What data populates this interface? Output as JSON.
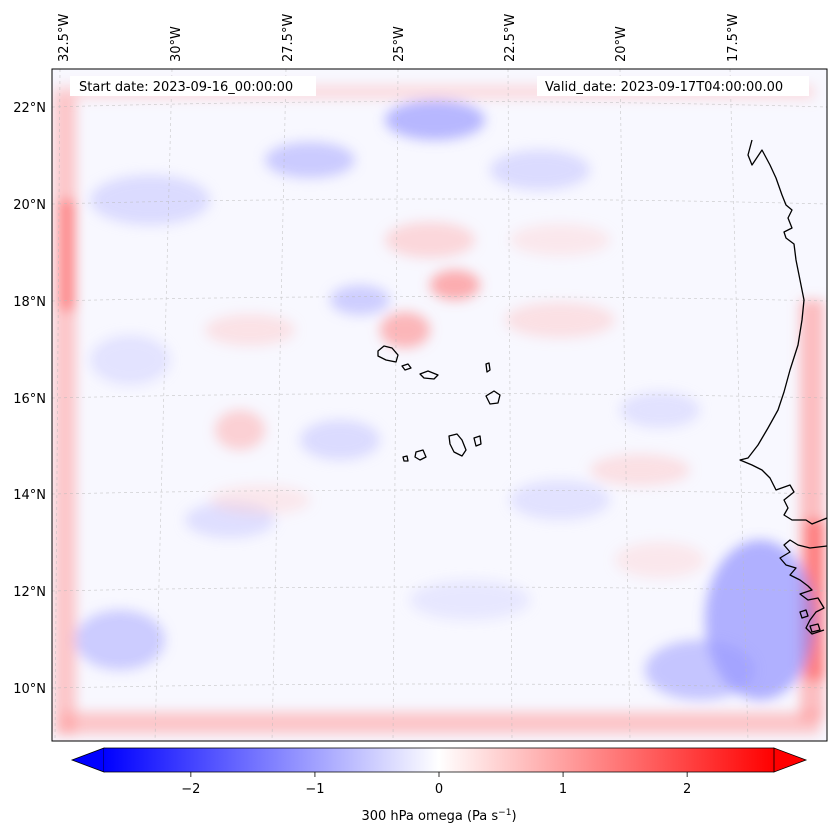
{
  "map": {
    "start_label": "Start date: 2023-09-16_00:00:00",
    "valid_label": "Valid_date: 2023-09-17T04:00:00.00",
    "lon_labels": [
      "32.5°W",
      "30°W",
      "27.5°W",
      "25°W",
      "22.5°W",
      "20°W",
      "17.5°W"
    ],
    "lat_labels": [
      "22°N",
      "20°N",
      "18°N",
      "16°N",
      "14°N",
      "12°N",
      "10°N"
    ],
    "field": "300 hPa omega",
    "colorbar": {
      "label_main": "300 hPa omega (Pa s",
      "label_exp": "−1",
      "label_close": ")",
      "ticks": [
        "−2",
        "−1",
        "0",
        "1",
        "2"
      ],
      "tick_values": [
        -2,
        -1,
        0,
        1,
        2
      ],
      "range": [
        -2.7,
        2.7
      ],
      "cmap": "bwr",
      "colors": {
        "negative": "#0000ff",
        "zero": "#ffffff",
        "positive": "#ff0000"
      }
    },
    "coastline_color": "#000000",
    "gridline_color": "#bbbbbb"
  }
}
